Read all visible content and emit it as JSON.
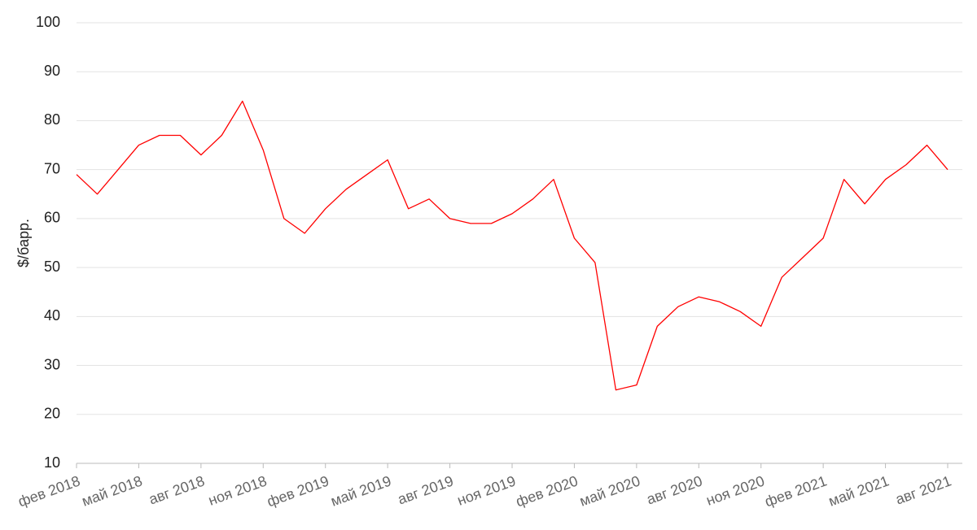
{
  "chart_data": {
    "type": "line",
    "y_label": "$/барр.",
    "x": [
      "2018-02",
      "2018-03",
      "2018-04",
      "2018-05",
      "2018-06",
      "2018-07",
      "2018-08",
      "2018-09",
      "2018-10",
      "2018-11",
      "2018-12",
      "2019-01",
      "2019-02",
      "2019-03",
      "2019-04",
      "2019-05",
      "2019-06",
      "2019-07",
      "2019-08",
      "2019-09",
      "2019-10",
      "2019-11",
      "2019-12",
      "2020-01",
      "2020-02",
      "2020-03",
      "2020-04",
      "2020-05",
      "2020-06",
      "2020-07",
      "2020-08",
      "2020-09",
      "2020-10",
      "2020-11",
      "2020-12",
      "2021-01",
      "2021-02",
      "2021-03",
      "2021-04",
      "2021-05",
      "2021-06",
      "2021-07",
      "2021-08"
    ],
    "series": [
      {
        "color": "#ff0000",
        "values": [
          69,
          65,
          70,
          75,
          77,
          77,
          73,
          77,
          84,
          74,
          60,
          57,
          62,
          66,
          69,
          72,
          62,
          64,
          60,
          59,
          59,
          61,
          64,
          68,
          56,
          51,
          25,
          26,
          38,
          42,
          44,
          43,
          41,
          38,
          48,
          52,
          56,
          68,
          63,
          68,
          71,
          75,
          70
        ]
      }
    ],
    "xlim": [
      "2018-02",
      "2021-08"
    ],
    "xticks": [
      {
        "value": "2018-02",
        "label": "фев 2018"
      },
      {
        "value": "2018-05",
        "label": "май 2018"
      },
      {
        "value": "2018-08",
        "label": "авг 2018"
      },
      {
        "value": "2018-11",
        "label": "ноя 2018"
      },
      {
        "value": "2019-02",
        "label": "фев 2019"
      },
      {
        "value": "2019-05",
        "label": "май 2019"
      },
      {
        "value": "2019-08",
        "label": "авг 2019"
      },
      {
        "value": "2019-11",
        "label": "ноя 2019"
      },
      {
        "value": "2020-02",
        "label": "фев 2020"
      },
      {
        "value": "2020-05",
        "label": "май 2020"
      },
      {
        "value": "2020-08",
        "label": "авг 2020"
      },
      {
        "value": "2020-11",
        "label": "ноя 2020"
      },
      {
        "value": "2021-02",
        "label": "фев 2021"
      },
      {
        "value": "2021-05",
        "label": "май 2021"
      },
      {
        "value": "2021-08",
        "label": "авг 2021"
      }
    ],
    "ylim": [
      10,
      100
    ],
    "yticks": [
      10,
      20,
      30,
      40,
      50,
      60,
      70,
      80,
      90,
      100
    ],
    "grid": true
  }
}
